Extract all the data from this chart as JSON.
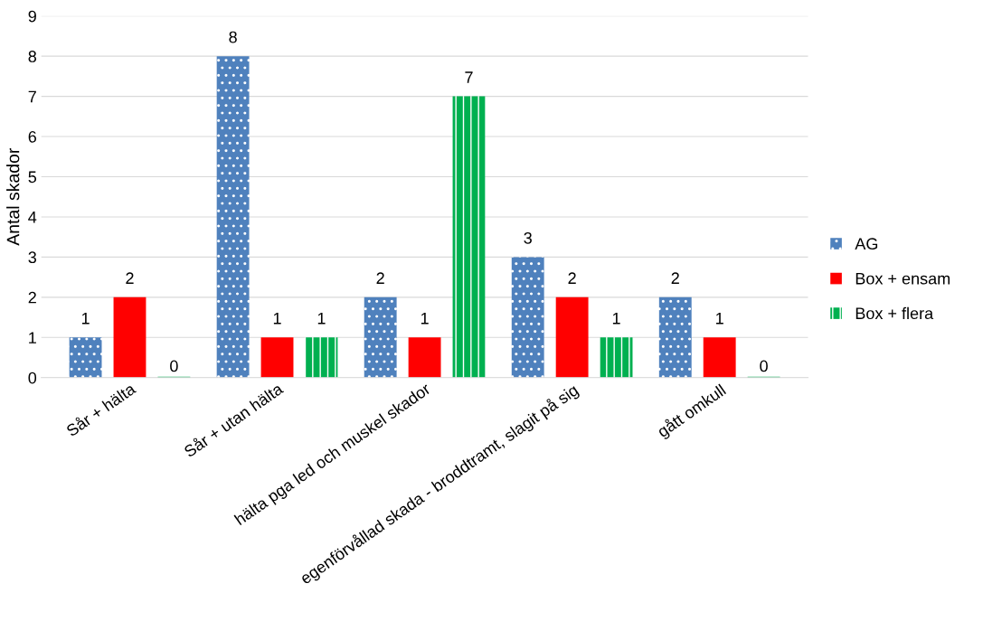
{
  "chart_data": {
    "type": "bar",
    "ylabel": "Antal skador",
    "categories": [
      "Sår + hälta",
      "Sår + utan hälta",
      "hälta pga led och muskel skador",
      "egenförvållad skada - broddtramt, slagit på sig",
      "gått omkull"
    ],
    "series": [
      {
        "name": "AG",
        "color": "#4f81bd",
        "values": [
          1,
          8,
          2,
          3,
          2
        ]
      },
      {
        "name": "Box + ensam",
        "color": "#ff0000",
        "values": [
          2,
          1,
          1,
          2,
          1
        ]
      },
      {
        "name": "Box + flera",
        "color": "#00b050",
        "values": [
          0,
          1,
          7,
          1,
          0
        ]
      }
    ],
    "ylim": [
      0,
      9
    ],
    "yticks": [
      0,
      1,
      2,
      3,
      4,
      5,
      6,
      7,
      8,
      9
    ],
    "grid": "y",
    "legend": "right",
    "data_labels": true
  }
}
